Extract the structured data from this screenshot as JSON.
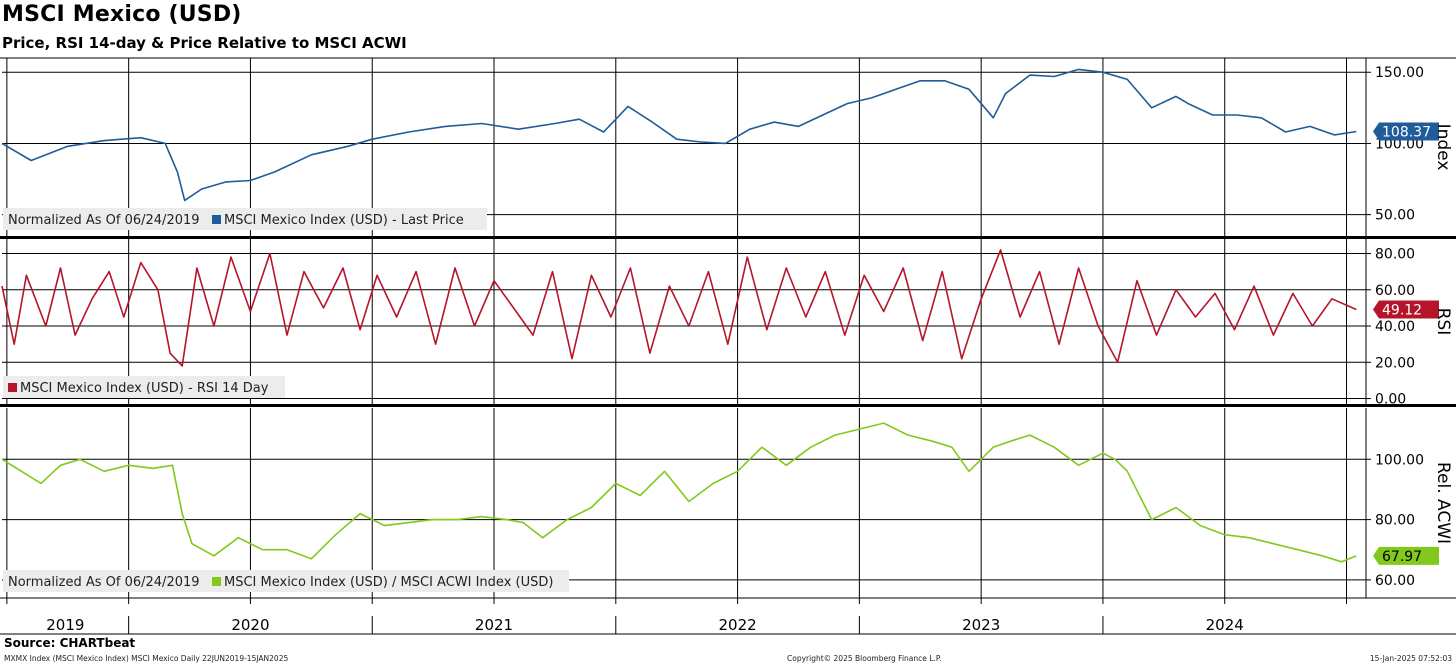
{
  "header": {
    "title": "MSCI Mexico (USD)",
    "subtitle": "Price, RSI 14-day & Price Relative to MSCI ACWI"
  },
  "source": "Source: CHARTbeat",
  "footer": {
    "left": "MXMX Index (MSCI Mexico Index) MSCI Mexico  Daily 22JUN2019-15JAN2025",
    "center": "Copyright© 2025 Bloomberg Finance L.P.",
    "right": "15-Jan-2025 07:52:03"
  },
  "colors": {
    "price": "#1f5c99",
    "rsi": "#b5152b",
    "relative": "#82c91e",
    "grid": "#000000",
    "legend_bg": "#ececec"
  },
  "chart_data": [
    {
      "type": "line",
      "panel": "price",
      "axis_label": "Index",
      "legend_note": "Normalized As Of 06/24/2019",
      "ylim": [
        35,
        160
      ],
      "yticks": [
        "150.00",
        "100.00",
        "50.00"
      ],
      "last_value_label": "108.37",
      "series": [
        {
          "name": "MSCI Mexico Index (USD) - Last Price",
          "x": [
            2019.48,
            2019.6,
            2019.75,
            2019.9,
            2020.05,
            2020.15,
            2020.2,
            2020.23,
            2020.3,
            2020.4,
            2020.5,
            2020.6,
            2020.75,
            2020.9,
            2021.0,
            2021.15,
            2021.3,
            2021.45,
            2021.6,
            2021.75,
            2021.85,
            2021.95,
            2022.05,
            2022.15,
            2022.25,
            2022.35,
            2022.45,
            2022.55,
            2022.65,
            2022.75,
            2022.85,
            2022.95,
            2023.05,
            2023.15,
            2023.25,
            2023.35,
            2023.45,
            2023.55,
            2023.6,
            2023.7,
            2023.8,
            2023.9,
            2024.0,
            2024.1,
            2024.2,
            2024.3,
            2024.35,
            2024.45,
            2024.55,
            2024.65,
            2024.75,
            2024.85,
            2024.95,
            2025.04
          ],
          "y": [
            100,
            88,
            98,
            102,
            104,
            100,
            80,
            60,
            68,
            73,
            74,
            80,
            92,
            98,
            103,
            108,
            112,
            114,
            110,
            114,
            117,
            108,
            126,
            115,
            103,
            101,
            100,
            110,
            115,
            112,
            120,
            128,
            132,
            138,
            144,
            144,
            138,
            118,
            135,
            148,
            147,
            152,
            150,
            145,
            125,
            133,
            128,
            120,
            120,
            118,
            108,
            112,
            106,
            108.37
          ]
        }
      ]
    },
    {
      "type": "line",
      "panel": "rsi",
      "axis_label": "RSI",
      "ylim": [
        -3,
        88
      ],
      "yticks": [
        "80.00",
        "60.00",
        "40.00",
        "20.00",
        "0.00"
      ],
      "last_value_label": "49.12",
      "series": [
        {
          "name": "MSCI Mexico Index (USD) - RSI 14 Day",
          "x": [
            2019.48,
            2019.53,
            2019.58,
            2019.66,
            2019.72,
            2019.78,
            2019.85,
            2019.92,
            2019.98,
            2020.05,
            2020.12,
            2020.17,
            2020.22,
            2020.28,
            2020.35,
            2020.42,
            2020.5,
            2020.58,
            2020.65,
            2020.72,
            2020.8,
            2020.88,
            2020.95,
            2021.02,
            2021.1,
            2021.18,
            2021.26,
            2021.34,
            2021.42,
            2021.5,
            2021.58,
            2021.66,
            2021.74,
            2021.82,
            2021.9,
            2021.98,
            2022.06,
            2022.14,
            2022.22,
            2022.3,
            2022.38,
            2022.46,
            2022.54,
            2022.62,
            2022.7,
            2022.78,
            2022.86,
            2022.94,
            2023.02,
            2023.1,
            2023.18,
            2023.26,
            2023.34,
            2023.42,
            2023.5,
            2023.58,
            2023.66,
            2023.74,
            2023.82,
            2023.9,
            2023.98,
            2024.06,
            2024.14,
            2024.22,
            2024.3,
            2024.38,
            2024.46,
            2024.54,
            2024.62,
            2024.7,
            2024.78,
            2024.86,
            2024.94,
            2025.04
          ],
          "y": [
            62,
            30,
            68,
            40,
            72,
            35,
            55,
            70,
            45,
            75,
            60,
            25,
            18,
            72,
            40,
            78,
            48,
            80,
            35,
            70,
            50,
            72,
            38,
            68,
            45,
            70,
            30,
            72,
            40,
            65,
            50,
            35,
            70,
            22,
            68,
            45,
            72,
            25,
            62,
            40,
            70,
            30,
            78,
            38,
            72,
            45,
            70,
            35,
            68,
            48,
            72,
            32,
            70,
            22,
            55,
            82,
            45,
            70,
            30,
            72,
            40,
            20,
            65,
            35,
            60,
            45,
            58,
            38,
            62,
            35,
            58,
            40,
            55,
            49.12
          ]
        }
      ]
    },
    {
      "type": "line",
      "panel": "relative",
      "axis_label": "Rel. ACWI",
      "legend_note": "Normalized As Of 06/24/2019",
      "ylim": [
        54,
        117
      ],
      "yticks": [
        "100.00",
        "80.00",
        "60.00"
      ],
      "last_value_label": "67.97",
      "series": [
        {
          "name": "MSCI Mexico Index (USD) / MSCI ACWI Index (USD)",
          "x": [
            2019.48,
            2019.56,
            2019.64,
            2019.72,
            2019.8,
            2019.9,
            2020.0,
            2020.1,
            2020.18,
            2020.22,
            2020.26,
            2020.35,
            2020.45,
            2020.55,
            2020.65,
            2020.75,
            2020.85,
            2020.95,
            2021.05,
            2021.15,
            2021.25,
            2021.35,
            2021.45,
            2021.55,
            2021.62,
            2021.7,
            2021.8,
            2021.9,
            2022.0,
            2022.1,
            2022.2,
            2022.3,
            2022.4,
            2022.5,
            2022.6,
            2022.7,
            2022.8,
            2022.9,
            2023.0,
            2023.1,
            2023.2,
            2023.3,
            2023.38,
            2023.45,
            2023.55,
            2023.62,
            2023.7,
            2023.8,
            2023.9,
            2024.0,
            2024.05,
            2024.1,
            2024.2,
            2024.3,
            2024.4,
            2024.5,
            2024.6,
            2024.7,
            2024.8,
            2024.9,
            2024.98,
            2025.04
          ],
          "y": [
            100,
            96,
            92,
            98,
            100,
            96,
            98,
            97,
            98,
            82,
            72,
            68,
            74,
            70,
            70,
            67,
            75,
            82,
            78,
            79,
            80,
            80,
            81,
            80,
            79,
            74,
            80,
            84,
            92,
            88,
            96,
            86,
            92,
            96,
            104,
            98,
            104,
            108,
            110,
            112,
            108,
            106,
            104,
            96,
            104,
            106,
            108,
            104,
            98,
            102,
            100,
            96,
            80,
            84,
            78,
            75,
            74,
            72,
            70,
            68,
            66,
            67.97
          ]
        }
      ]
    }
  ],
  "x_axis": {
    "years": [
      "2019",
      "2020",
      "2021",
      "2022",
      "2023",
      "2024"
    ]
  }
}
